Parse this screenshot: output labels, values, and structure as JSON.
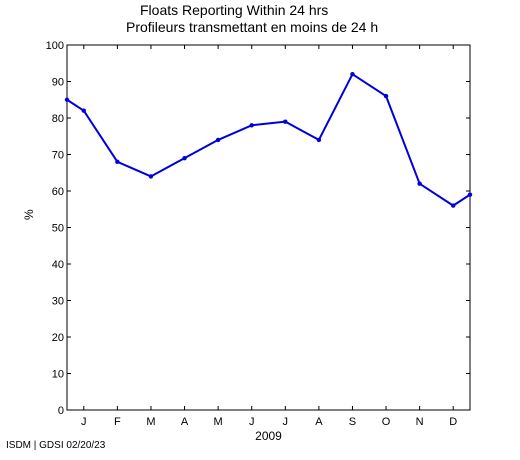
{
  "chart_data": {
    "type": "line",
    "title": "Floats Reporting Within 24 hrs",
    "subtitle": "Profileurs transmettant en moins de 24 h",
    "xlabel": "2009",
    "ylabel": "%",
    "ylim": [
      0,
      100
    ],
    "yticks": [
      0,
      10,
      20,
      30,
      40,
      50,
      60,
      70,
      80,
      90,
      100
    ],
    "xlim": [
      0.5,
      12.5
    ],
    "month_labels": [
      "J",
      "F",
      "M",
      "A",
      "M",
      "J",
      "J",
      "A",
      "S",
      "O",
      "N",
      "D"
    ],
    "grid": false,
    "color": "#0000dd",
    "series": [
      {
        "x": [
          0.5,
          1,
          2,
          3,
          4,
          5,
          6,
          7,
          8,
          9,
          10,
          11,
          12,
          12.5
        ],
        "values": [
          85,
          82,
          68,
          64,
          69,
          74,
          78,
          79,
          74,
          92,
          86,
          62,
          56,
          59
        ]
      }
    ]
  },
  "footer": "ISDM | GDSI 02/20/23"
}
